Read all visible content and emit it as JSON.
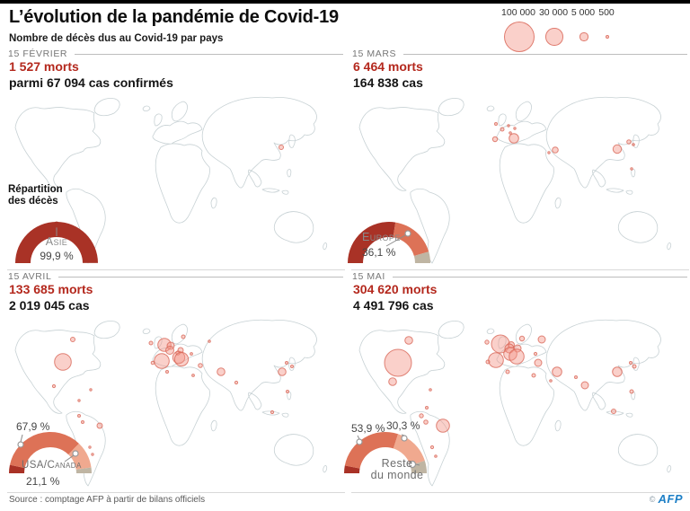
{
  "header": {
    "title": "L’évolution de la pandémie de Covid-19",
    "subtitle": "Nombre de décès dus au Covid-19 par pays"
  },
  "legend": {
    "items": [
      {
        "label": "100 000",
        "value": 100000
      },
      {
        "label": "30 000",
        "value": 30000
      },
      {
        "label": "5 000",
        "value": 5000
      },
      {
        "label": "500",
        "value": 500
      }
    ]
  },
  "colors": {
    "deaths_red": "#b4281d",
    "dark_red": "#a93226",
    "europe_salmon": "#dd7257",
    "usa_pink": "#f0a98f",
    "rest_gray": "#bfb5a3",
    "bubble_fill": "rgba(243,150,138,0.45)",
    "bubble_stroke": "rgba(216,102,88,0.8)",
    "map_stroke": "#c7d1d4",
    "afp_blue": "#1d7fc6"
  },
  "panels": [
    {
      "date": "15 FÉVRIER",
      "deaths": "1 527 morts",
      "cases": "parmi 67 094 cas confirmés",
      "donut": {
        "heading_line1": "Répartition",
        "heading_line2": "des décès",
        "region": "Asie",
        "pct": "99,9 %",
        "segments": [
          {
            "label": "Asie",
            "pct": 99.9,
            "color": "dark_red"
          },
          {
            "label": "",
            "pct": 0.1,
            "color": "rest_gray"
          }
        ]
      },
      "bubbles": [
        [
          305,
          66,
          2.5
        ]
      ]
    },
    {
      "date": "15 MARS",
      "deaths": "6 464 morts",
      "cases": "164 838 cas",
      "donut": {
        "region": "Europe",
        "pct": "36,1 %",
        "segments": [
          {
            "label": "",
            "pct": 55.0,
            "color": "dark_red"
          },
          {
            "label": "Europe",
            "pct": 36.1,
            "color": "europe_salmon"
          },
          {
            "label": "",
            "pct": 8.9,
            "color": "rest_gray"
          }
        ]
      },
      "bubbles": [
        [
          161,
          40,
          1.5
        ],
        [
          168,
          46,
          2
        ],
        [
          160,
          57,
          2.7
        ],
        [
          181,
          56,
          5.3
        ],
        [
          177,
          50,
          1.3
        ],
        [
          175,
          42,
          1.2
        ],
        [
          182,
          45,
          1.2
        ],
        [
          227,
          69,
          3.3
        ],
        [
          220,
          72,
          1.2
        ],
        [
          296,
          68,
          4.7
        ],
        [
          309,
          60,
          2.3
        ],
        [
          314,
          63,
          1.3
        ],
        [
          312,
          90,
          1.2
        ]
      ]
    },
    {
      "date": "15 AVRIL",
      "deaths": "133 685 morts",
      "cases": "2 019 045 cas",
      "donut": {
        "pct_europe": "67,9 %",
        "region": "USA/Canada",
        "pct_region": "21,1 %",
        "segments": [
          {
            "label": "",
            "pct": 6.5,
            "color": "dark_red"
          },
          {
            "label": "Europe",
            "pct": 67.9,
            "color": "europe_salmon"
          },
          {
            "label": "USA/Canada",
            "pct": 21.1,
            "color": "usa_pink"
          },
          {
            "label": "",
            "pct": 4.5,
            "color": "rest_gray"
          }
        ]
      },
      "bubbles": [
        [
          62,
          57,
          9.3
        ],
        [
          73,
          32,
          2.5
        ],
        [
          52,
          84,
          1.6
        ],
        [
          93,
          88,
          1.2
        ],
        [
          80,
          100,
          1.2
        ],
        [
          80,
          117,
          1.5
        ],
        [
          84,
          124,
          1.5
        ],
        [
          103,
          128,
          3
        ],
        [
          92,
          152,
          1.2
        ],
        [
          95,
          160,
          1.2
        ],
        [
          175,
          38,
          7.3
        ],
        [
          160,
          36,
          2
        ],
        [
          182,
          39,
          4
        ],
        [
          181,
          44,
          4.5
        ],
        [
          191,
          52,
          6.7
        ],
        [
          193,
          44,
          3
        ],
        [
          190,
          47,
          2.2
        ],
        [
          172,
          56,
          8.3
        ],
        [
          162,
          58,
          1.8
        ],
        [
          194,
          54,
          7.6
        ],
        [
          196,
          29,
          2
        ],
        [
          205,
          48,
          1.4
        ],
        [
          225,
          34,
          1.3
        ],
        [
          215,
          61,
          2.3
        ],
        [
          238,
          68,
          4.3
        ],
        [
          207,
          72,
          1.4
        ],
        [
          178,
          68,
          1.5
        ],
        [
          255,
          80,
          1.6
        ],
        [
          306,
          68,
          4.3
        ],
        [
          311,
          58,
          1.5
        ],
        [
          317,
          62,
          1.5
        ],
        [
          312,
          90,
          1.5
        ],
        [
          295,
          113,
          1.6
        ]
      ]
    },
    {
      "date": "15 MAI",
      "deaths": "304 620 morts",
      "cases": "4 491 796 cas",
      "donut": {
        "pct_europe": "53,9 %",
        "pct_usa": "30,3 %",
        "region_line1": "Reste",
        "region_line2": "du monde",
        "segments": [
          {
            "label": "",
            "pct": 6.0,
            "color": "dark_red"
          },
          {
            "label": "Europe",
            "pct": 53.9,
            "color": "europe_salmon"
          },
          {
            "label": "USA/Canada",
            "pct": 30.3,
            "color": "usa_pink"
          },
          {
            "label": "Reste du monde",
            "pct": 9.8,
            "color": "rest_gray"
          }
        ]
      },
      "bubbles": [
        [
          52,
          58,
          15
        ],
        [
          64,
          33,
          4.3
        ],
        [
          46,
          79,
          4.3
        ],
        [
          88,
          88,
          1.3
        ],
        [
          84,
          108,
          1.5
        ],
        [
          78,
          117,
          2.2
        ],
        [
          83,
          124,
          2.3
        ],
        [
          102,
          128,
          7.3
        ],
        [
          90,
          152,
          1.6
        ],
        [
          94,
          162,
          1.3
        ],
        [
          166,
          37,
          10
        ],
        [
          151,
          35,
          2.2
        ],
        [
          178,
          38,
          3.5
        ],
        [
          176,
          42,
          5
        ],
        [
          177,
          48,
          7.3
        ],
        [
          185,
          42,
          4
        ],
        [
          161,
          55,
          8.3
        ],
        [
          152,
          57,
          2
        ],
        [
          184,
          51,
          8.3
        ],
        [
          190,
          31,
          2.7
        ],
        [
          212,
          32,
          4
        ],
        [
          205,
          48,
          1.6
        ],
        [
          208,
          58,
          4
        ],
        [
          229,
          68,
          5.3
        ],
        [
          203,
          72,
          2
        ],
        [
          174,
          68,
          2
        ],
        [
          222,
          78,
          1.3
        ],
        [
          260,
          83,
          4
        ],
        [
          250,
          74,
          1.5
        ],
        [
          296,
          68,
          5.3
        ],
        [
          311,
          58,
          1.5
        ],
        [
          315,
          62,
          2
        ],
        [
          312,
          90,
          2
        ],
        [
          292,
          112,
          2.5
        ]
      ]
    }
  ],
  "footer": {
    "source": "Source : comptage AFP à partir de bilans officiels",
    "copyright": "©",
    "logo": "AFP"
  },
  "chart_data": [
    {
      "type": "bubble-map",
      "title": "15 février",
      "deaths": 1527,
      "cases_confirmed": 67094,
      "bubble_scale_values": [
        100000,
        30000,
        5000,
        500
      ],
      "donut": {
        "type": "semi-donut",
        "title": "Répartition des décès",
        "segments": [
          {
            "label": "Asie",
            "pct": 99.9
          },
          {
            "label": "",
            "pct": 0.1
          }
        ]
      }
    },
    {
      "type": "bubble-map",
      "title": "15 mars",
      "deaths": 6464,
      "cases_confirmed": 164838,
      "donut": {
        "type": "semi-donut",
        "segments": [
          {
            "label": "",
            "pct": 55.0
          },
          {
            "label": "Europe",
            "pct": 36.1
          },
          {
            "label": "",
            "pct": 8.9
          }
        ]
      }
    },
    {
      "type": "bubble-map",
      "title": "15 avril",
      "deaths": 133685,
      "cases_confirmed": 2019045,
      "donut": {
        "type": "semi-donut",
        "segments": [
          {
            "label": "",
            "pct": 6.5
          },
          {
            "label": "Europe",
            "pct": 67.9
          },
          {
            "label": "USA/Canada",
            "pct": 21.1
          },
          {
            "label": "",
            "pct": 4.5
          }
        ]
      }
    },
    {
      "type": "bubble-map",
      "title": "15 mai",
      "deaths": 304620,
      "cases_confirmed": 4491796,
      "donut": {
        "type": "semi-donut",
        "segments": [
          {
            "label": "",
            "pct": 6.0
          },
          {
            "label": "Europe",
            "pct": 53.9
          },
          {
            "label": "USA/Canada",
            "pct": 30.3
          },
          {
            "label": "Reste du monde",
            "pct": 9.8
          }
        ]
      }
    }
  ]
}
